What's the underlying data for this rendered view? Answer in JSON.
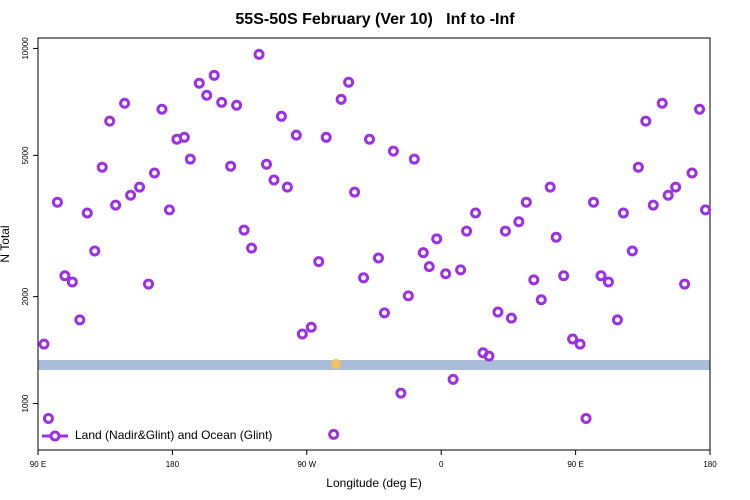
{
  "chart_data": {
    "type": "scatter",
    "title": "55S-50S February (Ver 10)   Inf to -Inf",
    "x_label": "Longitude (deg E)",
    "y_label": "N Total",
    "x": [
      94,
      97,
      103,
      108,
      113,
      118,
      123,
      128,
      133,
      138,
      142,
      148,
      152,
      158,
      164,
      168,
      173,
      178,
      183,
      188,
      192,
      198,
      203,
      208,
      213,
      219,
      223,
      228,
      233,
      238,
      243,
      248,
      253,
      257,
      263,
      267,
      273,
      278,
      283,
      288,
      293,
      298,
      302,
      308,
      312,
      318,
      322,
      328,
      333,
      338,
      342,
      348,
      352,
      357,
      363,
      368,
      373,
      377,
      383,
      388,
      392,
      398,
      403,
      407,
      412,
      417,
      422,
      427,
      433,
      437,
      442,
      448,
      453,
      457,
      462,
      467,
      472,
      478,
      482,
      488,
      492,
      497,
      502,
      508,
      512,
      517,
      523,
      528,
      533,
      537
    ],
    "series": [
      {
        "name": "Land (Nadir&Glint) and Ocean (Glint)",
        "color": "#9b30e6",
        "values": [
          1470,
          908,
          3690,
          2290,
          2200,
          1720,
          3440,
          2690,
          4630,
          6240,
          3620,
          7010,
          3860,
          4070,
          2170,
          4460,
          6740,
          3510,
          5550,
          5620,
          4880,
          7980,
          7380,
          8400,
          7050,
          4660,
          6920,
          3080,
          2740,
          9620,
          4720,
          4260,
          6440,
          4070,
          5700,
          1570,
          1640,
          2510,
          5620,
          819,
          7190,
          8030,
          3940,
          2260,
          5550,
          2570,
          1800,
          5140,
          1070,
          2010,
          4880,
          2660,
          2430,
          2910,
          2320,
          1170,
          2380,
          3060,
          3440,
          1390,
          1360,
          1810,
          3060,
          1740,
          3250,
          3690,
          2230,
          1960,
          4070,
          2940,
          2290,
          1520,
          1470,
          908,
          3690,
          2290,
          2200,
          1720,
          3440,
          2690,
          4630,
          6240,
          3620,
          7010,
          3860,
          4070,
          2170,
          4460,
          6740,
          3510
        ]
      }
    ],
    "xlim": [
      90,
      540
    ],
    "xticks": [
      {
        "value": 90,
        "label": "90 E"
      },
      180,
      {
        "value": 270,
        "label": "90 W"
      },
      {
        "value": 360,
        "label": "0"
      },
      {
        "value": 450,
        "label": "90 E"
      },
      {
        "value": 540,
        "label": "180"
      }
    ],
    "ylim": [
      740,
      10700
    ],
    "yticks": [
      1000,
      2000,
      5000,
      10000
    ],
    "log_y": true,
    "legend": "bottom-left"
  }
}
